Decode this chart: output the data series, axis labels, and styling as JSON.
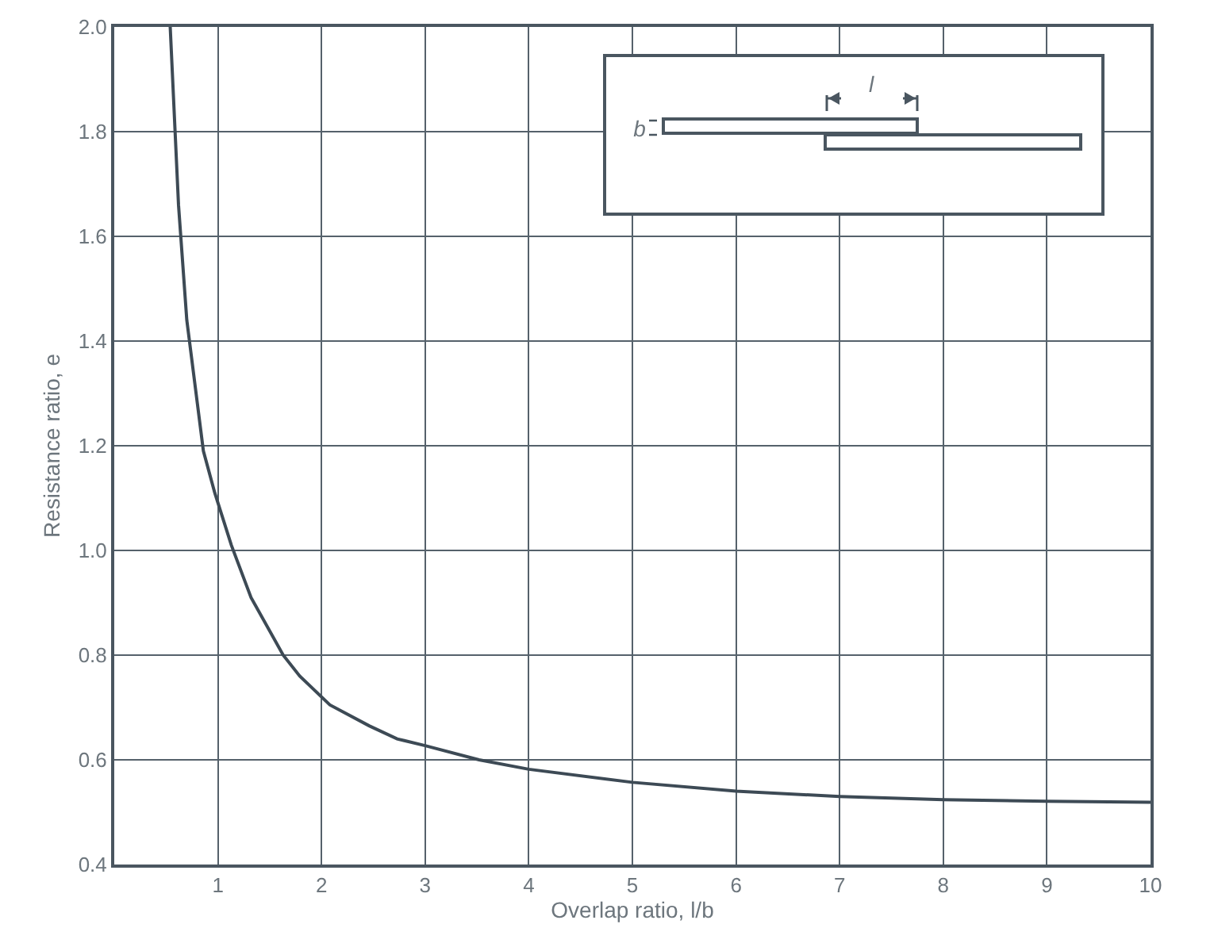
{
  "chart_data": {
    "type": "line",
    "xlabel": "Overlap ratio, l/b",
    "ylabel": "Resistance ratio, e",
    "annotations": [
      "l",
      "b"
    ],
    "series": [
      {
        "color": "#3d4a55",
        "x": [
          0.54,
          0.62,
          0.7,
          0.86,
          0.97,
          1.13,
          1.32,
          1.63,
          1.79,
          2.08,
          2.46,
          2.73,
          3.0,
          3.52,
          4,
          5,
          6,
          7,
          8,
          9,
          10
        ],
        "values": [
          2.0,
          1.66,
          1.44,
          1.19,
          1.11,
          1.01,
          0.91,
          0.8,
          0.76,
          0.705,
          0.665,
          0.64,
          0.627,
          0.6,
          0.582,
          0.557,
          0.54,
          0.53,
          0.524,
          0.521,
          0.519
        ]
      }
    ],
    "xlim": [
      0,
      10
    ],
    "xticks": [
      1,
      2,
      3,
      4,
      5,
      6,
      7,
      8,
      9,
      10
    ],
    "ylim": [
      0.4,
      2.0
    ],
    "yticks": [
      0.4,
      0.6,
      0.8,
      {
        "value": 1.0,
        "label": "1.0"
      },
      1.2,
      1.4,
      1.6,
      1.8,
      {
        "value": 2.0,
        "label": "2.0"
      }
    ],
    "grid": true,
    "marker": "none",
    "line_style": "solid"
  }
}
